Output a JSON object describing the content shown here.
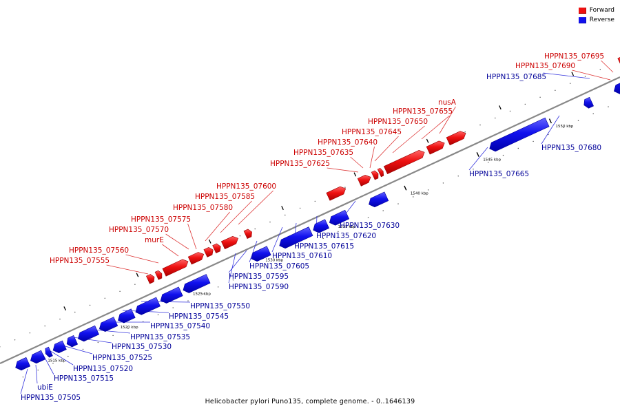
{
  "legend": {
    "forward": {
      "label": "Forward",
      "color": "#ee1111"
    },
    "reverse": {
      "label": "Reverse",
      "color": "#1111ee"
    }
  },
  "caption": "Helicobacter pylori Puno135, complete genome. - 0..1646139",
  "colors": {
    "label_forward": "#cc0000",
    "label_reverse": "#000099",
    "axis": "#888888",
    "callout_forward": "#dd3333",
    "callout_reverse": "#3333dd"
  },
  "ticks": [
    {
      "kbp": 1515,
      "label": "1515 kbp"
    },
    {
      "kbp": 1520,
      "label": "1520 kbp"
    },
    {
      "kbp": 1525,
      "label": "1525 kbp"
    },
    {
      "kbp": 1530,
      "label": "1530 kbp"
    },
    {
      "kbp": 1535,
      "label": "1535 kbp"
    },
    {
      "kbp": 1540,
      "label": "1540 kbp"
    },
    {
      "kbp": 1545,
      "label": "1545 kbp"
    },
    {
      "kbp": 1550,
      "label": "1550 kbp"
    },
    {
      "kbp": 1555,
      "label": "1555 kbp"
    }
  ],
  "labels": [
    {
      "text": "HPPN135_07695",
      "strand": "forward"
    },
    {
      "text": "HPPN135_07690",
      "strand": "forward"
    },
    {
      "text": "HPPN135_07685",
      "strand": "reverse"
    },
    {
      "text": "nusA",
      "strand": "forward"
    },
    {
      "text": "HPPN135_07655",
      "strand": "forward"
    },
    {
      "text": "HPPN135_07650",
      "strand": "forward"
    },
    {
      "text": "HPPN135_07645",
      "strand": "forward"
    },
    {
      "text": "HPPN135_07640",
      "strand": "forward"
    },
    {
      "text": "HPPN135_07635",
      "strand": "forward"
    },
    {
      "text": "HPPN135_07625",
      "strand": "forward"
    },
    {
      "text": "HPPN135_07600",
      "strand": "forward"
    },
    {
      "text": "HPPN135_07585",
      "strand": "forward"
    },
    {
      "text": "HPPN135_07580",
      "strand": "forward"
    },
    {
      "text": "HPPN135_07575",
      "strand": "forward"
    },
    {
      "text": "HPPN135_07570",
      "strand": "forward"
    },
    {
      "text": "murE",
      "strand": "forward"
    },
    {
      "text": "HPPN135_07560",
      "strand": "forward"
    },
    {
      "text": "HPPN135_07555",
      "strand": "forward"
    },
    {
      "text": "HPPN135_07680",
      "strand": "reverse"
    },
    {
      "text": "HPPN135_07665",
      "strand": "reverse"
    },
    {
      "text": "HPPN135_07630",
      "strand": "reverse"
    },
    {
      "text": "HPPN135_07620",
      "strand": "reverse"
    },
    {
      "text": "HPPN135_07615",
      "strand": "reverse"
    },
    {
      "text": "HPPN135_07610",
      "strand": "reverse"
    },
    {
      "text": "HPPN135_07605",
      "strand": "reverse"
    },
    {
      "text": "HPPN135_07595",
      "strand": "reverse"
    },
    {
      "text": "HPPN135_07590",
      "strand": "reverse"
    },
    {
      "text": "HPPN135_07550",
      "strand": "reverse"
    },
    {
      "text": "HPPN135_07545",
      "strand": "reverse"
    },
    {
      "text": "HPPN135_07540",
      "strand": "reverse"
    },
    {
      "text": "HPPN135_07535",
      "strand": "reverse"
    },
    {
      "text": "HPPN135_07530",
      "strand": "reverse"
    },
    {
      "text": "HPPN135_07525",
      "strand": "reverse"
    },
    {
      "text": "HPPN135_07520",
      "strand": "reverse"
    },
    {
      "text": "HPPN135_07515",
      "strand": "reverse"
    },
    {
      "text": "ubiE",
      "strand": "reverse"
    },
    {
      "text": "HPPN135_07505",
      "strand": "reverse"
    }
  ]
}
